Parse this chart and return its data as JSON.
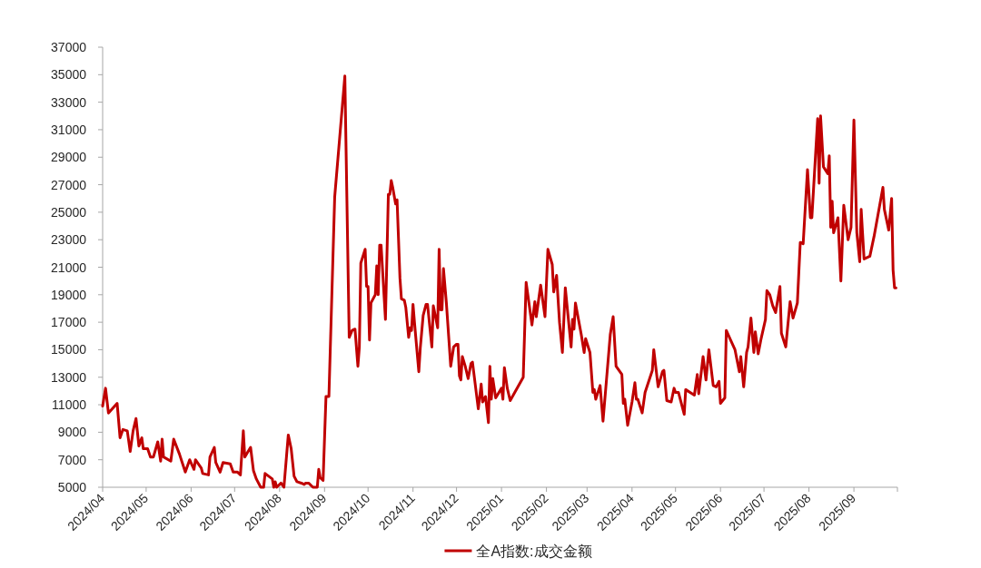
{
  "chart_data": {
    "type": "line",
    "x": [
      "2024-04-01",
      "2024-04-03",
      "2024-04-05",
      "2024-04-11",
      "2024-04-13",
      "2024-04-15",
      "2024-04-18",
      "2024-04-20",
      "2024-04-22",
      "2024-04-24",
      "2024-04-26",
      "2024-04-28",
      "2024-04-29",
      "2024-05-02",
      "2024-05-04",
      "2024-05-06",
      "2024-05-09",
      "2024-05-11",
      "2024-05-12",
      "2024-05-13",
      "2024-05-18",
      "2024-05-20",
      "2024-05-24",
      "2024-05-28",
      "2024-05-31",
      "2024-06-03",
      "2024-06-04",
      "2024-06-08",
      "2024-06-09",
      "2024-06-13",
      "2024-06-14",
      "2024-06-17",
      "2024-06-18",
      "2024-06-21",
      "2024-06-23",
      "2024-06-28",
      "2024-06-30",
      "2024-07-03",
      "2024-07-05",
      "2024-07-07",
      "2024-07-08",
      "2024-07-12",
      "2024-07-14",
      "2024-07-16",
      "2024-07-19",
      "2024-07-21",
      "2024-07-22",
      "2024-07-27",
      "2024-07-28",
      "2024-07-29",
      "2024-07-30",
      "2024-08-02",
      "2024-08-04",
      "2024-08-07",
      "2024-08-09",
      "2024-08-11",
      "2024-08-13",
      "2024-08-16",
      "2024-08-18",
      "2024-08-19",
      "2024-08-21",
      "2024-08-24",
      "2024-08-27",
      "2024-08-28",
      "2024-08-29",
      "2024-08-31",
      "2024-09-02",
      "2024-09-04",
      "2024-09-08",
      "2024-09-15",
      "2024-09-18",
      "2024-09-20",
      "2024-09-22",
      "2024-09-24",
      "2024-09-25",
      "2024-09-26",
      "2024-09-29",
      "2024-09-30",
      "2024-10-01",
      "2024-10-02",
      "2024-10-03",
      "2024-10-06",
      "2024-10-07",
      "2024-10-08",
      "2024-10-09",
      "2024-10-10",
      "2024-10-13",
      "2024-10-15",
      "2024-10-16",
      "2024-10-17",
      "2024-10-18",
      "2024-10-20",
      "2024-10-21",
      "2024-10-23",
      "2024-10-24",
      "2024-10-26",
      "2024-10-27",
      "2024-10-29",
      "2024-10-30",
      "2024-10-31",
      "2024-11-01",
      "2024-11-02",
      "2024-11-05",
      "2024-11-06",
      "2024-11-08",
      "2024-11-10",
      "2024-11-11",
      "2024-11-14",
      "2024-11-15",
      "2024-11-18",
      "2024-11-19",
      "2024-11-20",
      "2024-11-21",
      "2024-11-22",
      "2024-11-24",
      "2024-11-27",
      "2024-11-29",
      "2024-12-01",
      "2024-12-02",
      "2024-12-03",
      "2024-12-04",
      "2024-12-05",
      "2024-12-07",
      "2024-12-09",
      "2024-12-11",
      "2024-12-12",
      "2024-12-16",
      "2024-12-18",
      "2024-12-19",
      "2024-12-21",
      "2024-12-23",
      "2024-12-24",
      "2024-12-25",
      "2024-12-26",
      "2024-12-28",
      "2025-01-01",
      "2025-01-02",
      "2025-01-03",
      "2025-01-05",
      "2025-01-07",
      "2025-01-16",
      "2025-01-18",
      "2025-01-22",
      "2025-01-24",
      "2025-01-25",
      "2025-01-28",
      "2025-01-31",
      "2025-02-02",
      "2025-02-05",
      "2025-02-06",
      "2025-02-08",
      "2025-02-10",
      "2025-02-12",
      "2025-02-14",
      "2025-02-18",
      "2025-02-19",
      "2025-02-20",
      "2025-02-21",
      "2025-02-25",
      "2025-02-27",
      "2025-02-28",
      "2025-03-03",
      "2025-03-05",
      "2025-03-06",
      "2025-03-07",
      "2025-03-10",
      "2025-03-12",
      "2025-03-17",
      "2025-03-19",
      "2025-03-21",
      "2025-03-25",
      "2025-03-26",
      "2025-03-27",
      "2025-03-29",
      "2025-04-01",
      "2025-04-03",
      "2025-04-04",
      "2025-04-05",
      "2025-04-08",
      "2025-04-10",
      "2025-04-15",
      "2025-04-16",
      "2025-04-19",
      "2025-04-22",
      "2025-04-23",
      "2025-04-25",
      "2025-04-28",
      "2025-04-30",
      "2025-05-01",
      "2025-05-03",
      "2025-05-07",
      "2025-05-08",
      "2025-05-14",
      "2025-05-16",
      "2025-05-17",
      "2025-05-20",
      "2025-05-22",
      "2025-05-24",
      "2025-05-27",
      "2025-05-29",
      "2025-05-31",
      "2025-06-01",
      "2025-06-04",
      "2025-06-05",
      "2025-06-08",
      "2025-06-11",
      "2025-06-14",
      "2025-06-15",
      "2025-06-17",
      "2025-06-19",
      "2025-06-20",
      "2025-06-22",
      "2025-06-24",
      "2025-06-25",
      "2025-06-27",
      "2025-06-29",
      "2025-07-02",
      "2025-07-03",
      "2025-07-05",
      "2025-07-07",
      "2025-07-09",
      "2025-07-12",
      "2025-07-13",
      "2025-07-16",
      "2025-07-19",
      "2025-07-21",
      "2025-07-24",
      "2025-07-26",
      "2025-07-28",
      "2025-07-31",
      "2025-08-02",
      "2025-08-03",
      "2025-08-07",
      "2025-08-08",
      "2025-08-09",
      "2025-08-11",
      "2025-08-14",
      "2025-08-15",
      "2025-08-16",
      "2025-08-17",
      "2025-08-18",
      "2025-08-21",
      "2025-08-23",
      "2025-08-25",
      "2025-08-28",
      "2025-08-30",
      "2025-09-01",
      "2025-09-03",
      "2025-09-05",
      "2025-09-06",
      "2025-09-07",
      "2025-09-08",
      "2025-09-12",
      "2025-09-15",
      "2025-09-21",
      "2025-09-22",
      "2025-09-25",
      "2025-09-27",
      "2025-09-28",
      "2025-09-29",
      "2025-09-30"
    ],
    "series": [
      {
        "name": "全A指数:成交金额",
        "color": "#c00000",
        "values": [
          10900,
          12200,
          10400,
          11100,
          8600,
          9200,
          9100,
          7600,
          9100,
          10000,
          8000,
          8600,
          7800,
          7800,
          7200,
          7200,
          8300,
          6900,
          8500,
          7200,
          6900,
          8500,
          7400,
          6100,
          7000,
          6300,
          7000,
          6400,
          6000,
          5900,
          7200,
          7900,
          6800,
          6100,
          6800,
          6700,
          6100,
          6100,
          5900,
          9100,
          7200,
          7900,
          6200,
          5600,
          5000,
          5000,
          6000,
          5600,
          5000,
          5400,
          5000,
          5300,
          5000,
          8800,
          7800,
          5800,
          5400,
          5300,
          5200,
          5300,
          5300,
          5000,
          5000,
          6300,
          5700,
          5500,
          11600,
          11600,
          26100,
          34900,
          15900,
          16400,
          16500,
          13800,
          15200,
          21300,
          22300,
          19600,
          19600,
          15700,
          18400,
          19000,
          21100,
          19000,
          22600,
          22600,
          17200,
          26300,
          26300,
          27300,
          26800,
          25600,
          25900,
          20200,
          18700,
          18600,
          18100,
          15900,
          16600,
          16400,
          18300,
          17000,
          13400,
          15100,
          17500,
          18300,
          18300,
          15200,
          18200,
          16600,
          22300,
          17900,
          17900,
          20900,
          18400,
          13800,
          15200,
          15400,
          15400,
          13100,
          12800,
          14500,
          13800,
          12900,
          14000,
          14100,
          10700,
          12500,
          11200,
          11600,
          9700,
          13800,
          11400,
          12900,
          11500,
          12200,
          11400,
          13700,
          12200,
          11300,
          13000,
          19900,
          16800,
          18500,
          17400,
          19700,
          17400,
          22300,
          21200,
          19200,
          20400,
          17000,
          14800,
          19500,
          15200,
          17200,
          16500,
          18400,
          16100,
          14800,
          15800,
          14800,
          11900,
          12100,
          11400,
          12400,
          9800,
          16100,
          17400,
          13800,
          13200,
          11100,
          11400,
          9500,
          11200,
          12600,
          11400,
          11400,
          10400,
          11900,
          13500,
          15000,
          12300,
          13400,
          13500,
          11300,
          11200,
          12200,
          11900,
          11900,
          10300,
          12100,
          11700,
          13200,
          11800,
          14500,
          12800,
          15000,
          12400,
          12300,
          12700,
          11100,
          11500,
          16400,
          15700,
          15000,
          13400,
          14500,
          12300,
          14800,
          15200,
          17300,
          14800,
          16300,
          14700,
          15800,
          17200,
          19300,
          19000,
          18200,
          17700,
          19600,
          16200,
          15200,
          18500,
          17300,
          18400,
          22800,
          22700,
          28100,
          24600,
          24600,
          31800,
          27100,
          32000,
          28300,
          27800,
          29100,
          23900,
          25800,
          23500,
          24600,
          20000,
          25500,
          23000,
          23900,
          31700,
          23500,
          21400,
          25200,
          23400,
          21600,
          21800,
          23300,
          26800,
          25200,
          23700,
          26000,
          20800,
          19500,
          19500
        ]
      }
    ],
    "xlim": [
      "2024-04-01",
      "2025-10-01"
    ],
    "xticks": [
      {
        "value": "2024-04-01",
        "label": "2024/04"
      },
      {
        "value": "2024-05-01",
        "label": "2024/05"
      },
      {
        "value": "2024-06-01",
        "label": "2024/06"
      },
      {
        "value": "2024-07-01",
        "label": "2024/07"
      },
      {
        "value": "2024-08-01",
        "label": "2024/08"
      },
      {
        "value": "2024-09-01",
        "label": "2024/09"
      },
      {
        "value": "2024-10-01",
        "label": "2024/10"
      },
      {
        "value": "2024-11-01",
        "label": "2024/11"
      },
      {
        "value": "2024-12-01",
        "label": "2024/12"
      },
      {
        "value": "2025-01-01",
        "label": "2025/01"
      },
      {
        "value": "2025-02-01",
        "label": "2025/02"
      },
      {
        "value": "2025-03-01",
        "label": "2025/03"
      },
      {
        "value": "2025-04-01",
        "label": "2025/04"
      },
      {
        "value": "2025-05-01",
        "label": "2025/05"
      },
      {
        "value": "2025-06-01",
        "label": "2025/06"
      },
      {
        "value": "2025-07-01",
        "label": "2025/07"
      },
      {
        "value": "2025-08-01",
        "label": "2025/08"
      },
      {
        "value": "2025-09-01",
        "label": "2025/09"
      },
      {
        "value": "2025-10-01",
        "label": null
      }
    ],
    "ylim": [
      5000,
      37000
    ],
    "yticks": [
      5000,
      7000,
      9000,
      11000,
      13000,
      15000,
      17000,
      19000,
      21000,
      23000,
      25000,
      27000,
      29000,
      31000,
      33000,
      35000,
      37000
    ],
    "legend": "bottom",
    "marker": "none",
    "line_style": "solid"
  }
}
